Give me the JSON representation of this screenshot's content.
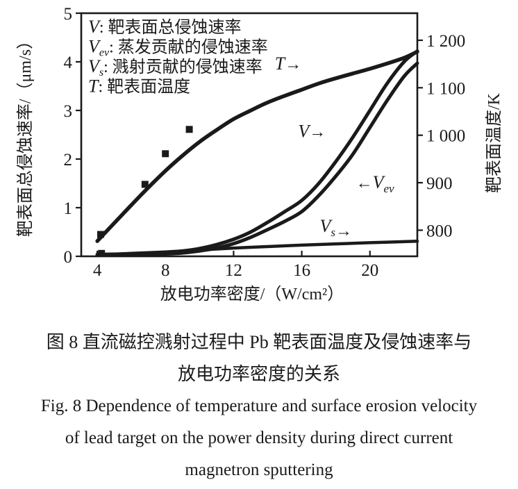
{
  "figure": {
    "caption_zh_1": "图 8  直流磁控溅射过程中 Pb 靶表面温度及侵蚀速率与",
    "caption_zh_2": "放电功率密度的关系",
    "caption_en_1": "Fig. 8  Dependence of temperature and surface erosion velocity",
    "caption_en_2": "of lead target on the power density during direct current",
    "caption_en_3": "magnetron sputtering"
  },
  "chart_data": {
    "type": "line",
    "title": "",
    "xlabel": "放电功率密度/（W/cm²）",
    "ylabel_left": "靶表面总侵蚀速率/（μm/s）",
    "ylabel_right": "靶表面温度/K",
    "ink_color": "#1a1a1a",
    "grid": false,
    "xlim": [
      3.06,
      22.78
    ],
    "x_ticks": [
      4,
      8,
      12,
      16,
      20
    ],
    "ylim_left": [
      0,
      5
    ],
    "y_left_ticks": [
      0,
      1,
      2,
      3,
      4,
      5
    ],
    "ylim_right": [
      745,
      1257
    ],
    "y_right_ticks": [
      {
        "value": 800,
        "label": "800"
      },
      {
        "value": 900,
        "label": "900"
      },
      {
        "value": 1000,
        "label": "1 000"
      },
      {
        "value": 1100,
        "label": "1 100"
      },
      {
        "value": 1200,
        "label": "1 200"
      }
    ],
    "legend": [
      {
        "symbol": "V",
        "sub": "",
        "text": "靶表面总侵蚀速率"
      },
      {
        "symbol": "V",
        "sub": "ev",
        "text": "蒸发贡献的侵蚀速率"
      },
      {
        "symbol": "V",
        "sub": "s",
        "text": "溅射贡献的侵蚀速率"
      },
      {
        "symbol": "T",
        "sub": "",
        "text": "靶表面温度"
      }
    ],
    "series": [
      {
        "name": "T",
        "axis": "right",
        "points": [
          [
            4,
            777
          ],
          [
            5,
            815
          ],
          [
            6,
            853
          ],
          [
            7,
            890
          ],
          [
            8,
            925
          ],
          [
            9,
            957
          ],
          [
            10,
            986
          ],
          [
            11,
            1011
          ],
          [
            12,
            1034
          ],
          [
            13,
            1052
          ],
          [
            14,
            1069
          ],
          [
            15,
            1083
          ],
          [
            16,
            1096
          ],
          [
            17,
            1109
          ],
          [
            18,
            1120
          ],
          [
            19,
            1130
          ],
          [
            20,
            1140
          ],
          [
            21,
            1151
          ],
          [
            22,
            1163
          ],
          [
            22.78,
            1176
          ]
        ]
      },
      {
        "name": "V",
        "axis": "left",
        "points": [
          [
            4,
            0.04
          ],
          [
            6,
            0.05
          ],
          [
            8,
            0.08
          ],
          [
            9,
            0.11
          ],
          [
            10,
            0.16
          ],
          [
            11,
            0.24
          ],
          [
            12,
            0.35
          ],
          [
            13,
            0.5
          ],
          [
            14,
            0.7
          ],
          [
            15,
            0.92
          ],
          [
            16,
            1.15
          ],
          [
            17,
            1.5
          ],
          [
            18,
            1.95
          ],
          [
            19,
            2.45
          ],
          [
            20,
            3.0
          ],
          [
            21,
            3.55
          ],
          [
            22,
            4.0
          ],
          [
            22.78,
            4.22
          ]
        ]
      },
      {
        "name": "Vev",
        "axis": "left",
        "points": [
          [
            4,
            0.02
          ],
          [
            6,
            0.03
          ],
          [
            8,
            0.05
          ],
          [
            9,
            0.07
          ],
          [
            10,
            0.11
          ],
          [
            11,
            0.17
          ],
          [
            12,
            0.26
          ],
          [
            13,
            0.39
          ],
          [
            14,
            0.55
          ],
          [
            15,
            0.72
          ],
          [
            16,
            0.92
          ],
          [
            17,
            1.25
          ],
          [
            18,
            1.65
          ],
          [
            19,
            2.1
          ],
          [
            20,
            2.65
          ],
          [
            21,
            3.2
          ],
          [
            22,
            3.7
          ],
          [
            22.78,
            3.97
          ]
        ]
      },
      {
        "name": "Vs",
        "axis": "left",
        "points": [
          [
            4,
            0.03
          ],
          [
            6,
            0.06
          ],
          [
            8,
            0.09
          ],
          [
            10,
            0.13
          ],
          [
            12,
            0.17
          ],
          [
            14,
            0.2
          ],
          [
            16,
            0.23
          ],
          [
            18,
            0.255
          ],
          [
            20,
            0.28
          ],
          [
            22.78,
            0.31
          ]
        ]
      }
    ],
    "scatter": {
      "name": "V-experimental-points",
      "axis": "left",
      "marker": "square",
      "points": [
        [
          4.25,
          0.06
        ],
        [
          4.2,
          0.45
        ],
        [
          6.8,
          1.48
        ],
        [
          8.0,
          2.11
        ],
        [
          9.4,
          2.61
        ]
      ]
    },
    "annotations": [
      {
        "symbol": "T",
        "sub": "",
        "arrow": "right",
        "x": 15.2,
        "y": 3.84
      },
      {
        "symbol": "V",
        "sub": "",
        "arrow": "right",
        "x": 16.6,
        "y": 2.45
      },
      {
        "symbol": "V",
        "sub": "ev",
        "arrow": "left",
        "x": 20.3,
        "y": 1.4
      },
      {
        "symbol": "V",
        "sub": "s",
        "arrow": "right",
        "x": 18.0,
        "y": 0.5
      }
    ]
  }
}
